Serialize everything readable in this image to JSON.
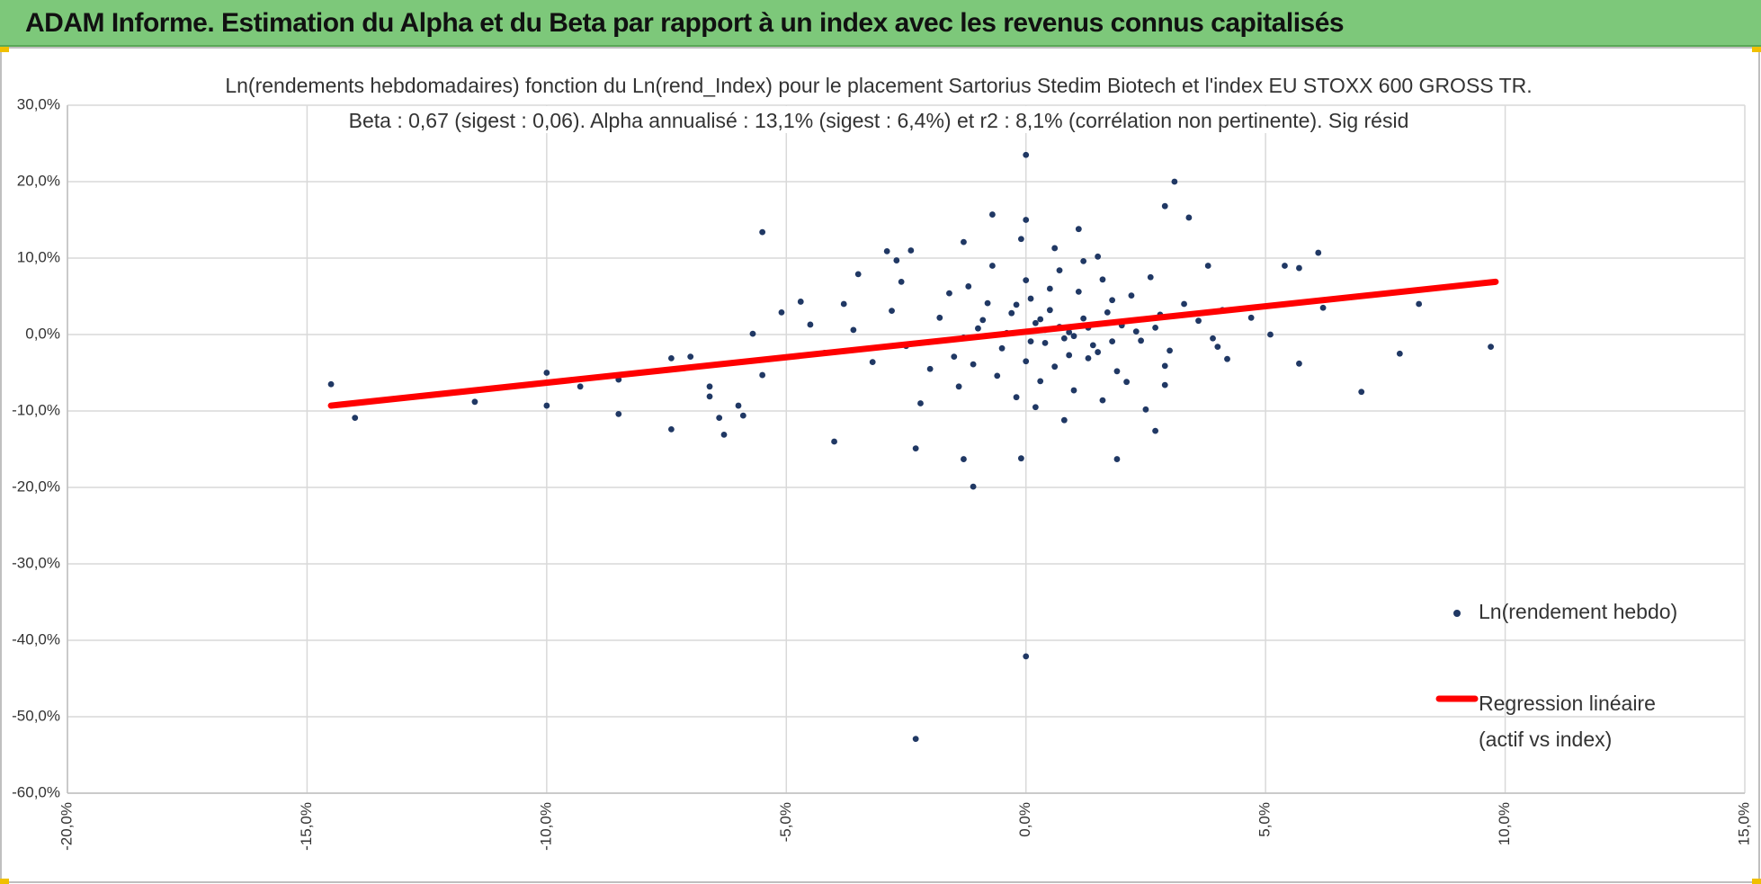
{
  "header": {
    "title": "ADAM Informe. Estimation du Alpha et du Beta par rapport à un index avec les revenus connus capitalisés"
  },
  "chart_data": {
    "type": "scatter",
    "title": "Ln(rendements hebdomadaires) fonction du Ln(rend_Index) pour le placement Sartorius Stedim Biotech et l'index EU STOXX 600 GROSS TR.",
    "subtitle": "Beta : 0,67 (sigest : 0,06).  Alpha annualisé : 13,1% (sigest : 6,4%) et r2 : 8,1% (corrélation non pertinente). Sig résid",
    "xlim": [
      -20,
      15
    ],
    "ylim": [
      -60,
      30
    ],
    "xticks": [
      {
        "value": -20,
        "label": "-20,0%"
      },
      {
        "value": -15,
        "label": "-15,0%"
      },
      {
        "value": -10,
        "label": "-10,0%"
      },
      {
        "value": -5,
        "label": "-5,0%"
      },
      {
        "value": 0,
        "label": "0,0%"
      },
      {
        "value": 5,
        "label": "5,0%"
      },
      {
        "value": 10,
        "label": "10,0%"
      },
      {
        "value": 15,
        "label": "15,0%"
      }
    ],
    "yticks": [
      {
        "value": -60,
        "label": "-60,0%"
      },
      {
        "value": -50,
        "label": "-50,0%"
      },
      {
        "value": -40,
        "label": "-40,0%"
      },
      {
        "value": -30,
        "label": "-30,0%"
      },
      {
        "value": -20,
        "label": "-20,0%"
      },
      {
        "value": -10,
        "label": "-10,0%"
      },
      {
        "value": 0,
        "label": "0,0%"
      },
      {
        "value": 10,
        "label": "10,0%"
      },
      {
        "value": 20,
        "label": "20,0%"
      },
      {
        "value": 30,
        "label": "30,0%"
      }
    ],
    "grid": true,
    "series": [
      {
        "name": "Ln(rendement hebdo)",
        "type": "scatter",
        "color": "#203864",
        "x": [
          -14.5,
          -14.0,
          -11.5,
          -10.0,
          -10.0,
          -9.3,
          -8.5,
          -8.5,
          -7.4,
          -7.4,
          -7.0,
          -6.6,
          -6.6,
          -6.4,
          -6.3,
          -6.0,
          -5.9,
          -5.5,
          -5.7,
          -5.5,
          -5.1,
          -4.7,
          -4.0,
          -3.8,
          -3.5,
          -2.9,
          -2.7,
          -2.4,
          -2.3,
          -2.3,
          -1.3,
          -1.3,
          -1.1,
          -0.7,
          -0.1,
          0.0,
          0.0,
          0.0,
          1.9,
          3.1,
          2.9,
          3.4,
          2.7,
          2.9,
          3.8,
          5.1,
          5.4,
          5.7,
          5.7,
          6.1,
          6.2,
          7.0,
          7.8,
          8.2,
          9.7,
          4.2,
          4.7,
          4.0,
          0.2,
          0.8,
          1.2,
          -0.5,
          0.5,
          1.5,
          -1.0,
          0.0,
          2.0,
          1.8,
          -0.3,
          0.6,
          1.1,
          -1.5,
          2.4,
          0.9,
          -0.8,
          0.3,
          1.6,
          -2.0,
          2.8,
          -1.2,
          0.4,
          1.3,
          -0.6,
          2.2,
          -1.8,
          0.7,
          1.0,
          -2.5,
          3.0,
          0.1,
          1.9,
          -0.2,
          2.6,
          -1.4,
          0.5,
          1.4,
          -0.9,
          2.1,
          3.3,
          -2.8,
          -3.2,
          0.9,
          1.7,
          -0.4,
          0.2,
          2.3,
          -1.1,
          1.2,
          0.6,
          -0.1,
          1.5,
          3.6,
          -3.6,
          -4.2,
          3.9,
          -2.2,
          2.5,
          0.8,
          1.1,
          -0.7,
          0.0,
          1.6,
          -1.6,
          4.1,
          -4.5,
          2.9,
          -2.6,
          0.3,
          0.7,
          1.0,
          0.4,
          1.3,
          0.1,
          -0.2,
          1.8,
          2.7,
          -1.3
        ],
        "values": [
          -6.5,
          -10.9,
          -8.8,
          -5.0,
          -9.3,
          -6.8,
          -10.4,
          -5.9,
          -12.4,
          -3.1,
          -2.9,
          -6.8,
          -8.1,
          -10.9,
          -13.1,
          -9.3,
          -10.6,
          13.4,
          0.1,
          -5.3,
          2.9,
          4.3,
          -14.0,
          4.0,
          7.9,
          10.9,
          9.7,
          11.0,
          -14.9,
          -52.9,
          12.1,
          -16.3,
          -19.9,
          15.7,
          -16.2,
          23.5,
          -42.1,
          15.0,
          -16.3,
          20.0,
          16.8,
          15.3,
          -12.6,
          -6.6,
          9.0,
          0.0,
          9.0,
          8.7,
          -3.8,
          10.7,
          3.5,
          -7.5,
          -2.5,
          4.0,
          -1.6,
          -3.2,
          2.2,
          -1.6,
          1.5,
          -0.5,
          2.1,
          -1.8,
          3.2,
          -2.3,
          0.8,
          -3.5,
          1.2,
          4.5,
          2.8,
          -4.2,
          5.6,
          -2.9,
          -0.8,
          0.3,
          4.1,
          -6.1,
          7.2,
          -4.5,
          2.6,
          6.3,
          -1.1,
          0.9,
          -5.4,
          5.1,
          2.2,
          8.4,
          -7.3,
          -1.5,
          -2.1,
          4.7,
          -4.8,
          -8.2,
          7.5,
          -6.8,
          6.0,
          -1.4,
          1.9,
          -6.2,
          4.0,
          3.1,
          -3.6,
          -2.7,
          2.9,
          0.2,
          -9.5,
          0.4,
          -3.9,
          9.6,
          11.3,
          12.5,
          10.2,
          1.8,
          0.6,
          -2.4,
          -0.5,
          -9.0,
          -9.8,
          -11.2,
          13.8,
          9.0,
          7.1,
          -8.6,
          5.4,
          3.2,
          1.3,
          -4.1,
          6.9,
          2.0,
          1.0,
          -0.2,
          0.6,
          -3.1,
          -0.9,
          3.9,
          -0.9,
          0.9,
          -0.4
        ]
      },
      {
        "name": "Regression linéaire (actif vs index)",
        "type": "line",
        "color": "#ff0000",
        "x": [
          -14.5,
          9.8
        ],
        "values": [
          -9.3,
          6.9
        ]
      }
    ]
  }
}
